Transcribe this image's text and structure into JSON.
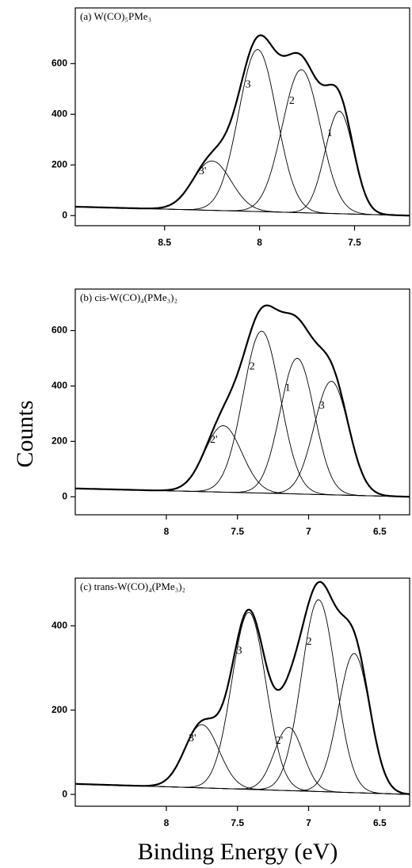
{
  "ylabel": "Counts",
  "xlabel": "Binding Energy (eV)",
  "chart_data": [
    {
      "type": "peak-fit",
      "title": "(a) W(CO)₅PMe₃",
      "color": "#000000",
      "xlim": [
        8.97,
        7.21
      ],
      "ylim": [
        -40,
        820
      ],
      "xticks": [
        8.5,
        8.0,
        7.5
      ],
      "yticks": [
        0,
        200,
        400,
        600
      ],
      "baseline": {
        "x": [
          8.97,
          7.21
        ],
        "values": [
          35,
          0
        ]
      },
      "peaks": [
        {
          "label": "3'",
          "center": 8.25,
          "height": 195,
          "width": 0.1
        },
        {
          "label": "3",
          "center": 8.01,
          "height": 640,
          "width": 0.1
        },
        {
          "label": "2",
          "center": 7.78,
          "height": 565,
          "width": 0.1
        },
        {
          "label": "1",
          "center": 7.58,
          "height": 405,
          "width": 0.075
        }
      ]
    },
    {
      "type": "peak-fit",
      "title": "(b) cis-W(CO)₄(PMe₃)₂",
      "color": "#000000",
      "xlim": [
        8.64,
        6.29
      ],
      "ylim": [
        -65,
        750
      ],
      "xticks": [
        8.0,
        7.5,
        7.0,
        6.5
      ],
      "yticks": [
        0,
        200,
        400,
        600
      ],
      "baseline": {
        "x": [
          8.64,
          6.29
        ],
        "values": [
          30,
          0
        ]
      },
      "peaks": [
        {
          "label": "2'",
          "center": 7.6,
          "height": 240,
          "width": 0.13
        },
        {
          "label": "2",
          "center": 7.33,
          "height": 585,
          "width": 0.13
        },
        {
          "label": "1",
          "center": 7.08,
          "height": 490,
          "width": 0.12
        },
        {
          "label": "3",
          "center": 6.84,
          "height": 410,
          "width": 0.12
        }
      ]
    },
    {
      "type": "peak-fit",
      "title": "(c) trans-W(CO)₄(PMe₃)₂",
      "color": "#000000",
      "xlim": [
        8.64,
        6.29
      ],
      "ylim": [
        -28,
        513
      ],
      "xticks": [
        8.0,
        7.5,
        7.0,
        6.5
      ],
      "yticks": [
        0,
        200,
        400
      ],
      "baseline": {
        "x": [
          8.64,
          6.29
        ],
        "values": [
          25,
          0
        ]
      },
      "peaks": [
        {
          "label": "3'",
          "center": 7.75,
          "height": 150,
          "width": 0.12
        },
        {
          "label": "3",
          "center": 7.42,
          "height": 420,
          "width": 0.12
        },
        {
          "label": "2'",
          "center": 7.14,
          "height": 150,
          "width": 0.1
        },
        {
          "label": "2",
          "center": 6.93,
          "height": 455,
          "width": 0.12
        },
        {
          "label": null,
          "center": 6.68,
          "height": 330,
          "width": 0.11
        }
      ]
    }
  ]
}
